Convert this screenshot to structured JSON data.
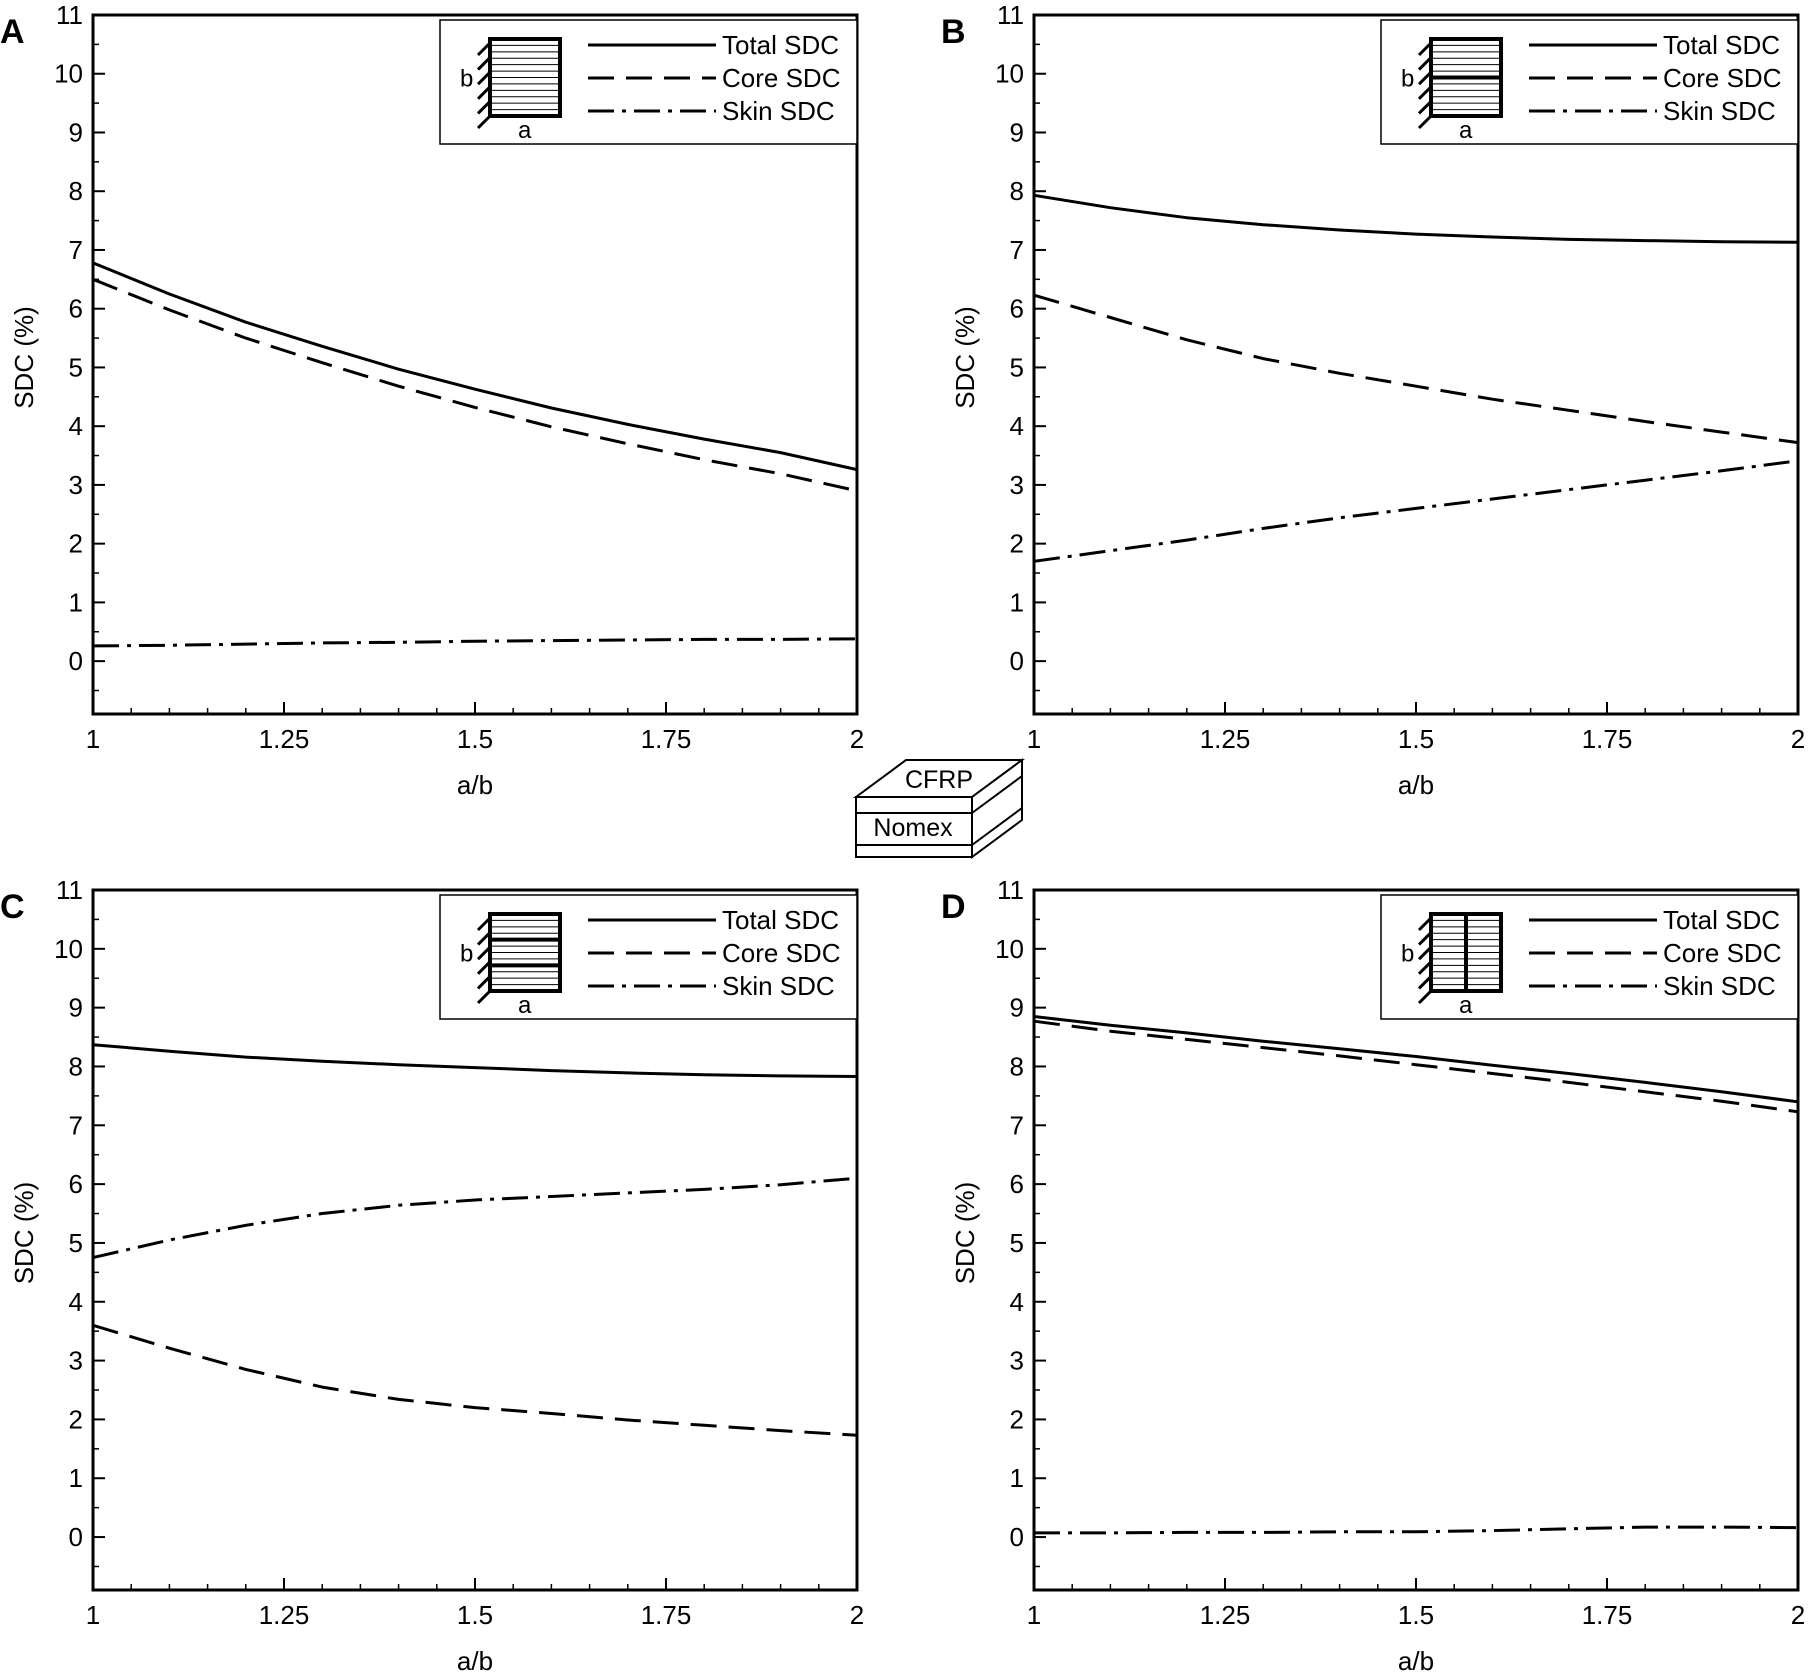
{
  "colors": {
    "ink": "#000000",
    "background": "#ffffff"
  },
  "material_inset": {
    "top_label": "CFRP",
    "core_label": "Nomex"
  },
  "chart_data": [
    {
      "panel": "A",
      "type": "line",
      "xlabel": "a/b",
      "ylabel": "SDC (%)",
      "xlim": [
        1,
        2
      ],
      "ylim": [
        -0.9,
        11
      ],
      "xticks": [
        "1",
        "1.25",
        "1.5",
        "1.75",
        "2"
      ],
      "yticks": [
        "0",
        "1",
        "2",
        "3",
        "4",
        "5",
        "6",
        "7",
        "8",
        "9",
        "10",
        "11"
      ],
      "legend": {
        "placement": "top-right",
        "dim_a": "a",
        "dim_b": "b",
        "inset": "plain"
      },
      "x": [
        1,
        1.1,
        1.2,
        1.3,
        1.4,
        1.5,
        1.6,
        1.7,
        1.8,
        1.9,
        2
      ],
      "series": [
        {
          "name": "Total SDC",
          "style": "solid",
          "values": [
            6.78,
            6.25,
            5.77,
            5.36,
            4.97,
            4.63,
            4.31,
            4.03,
            3.78,
            3.55,
            3.26
          ]
        },
        {
          "name": "Core SDC",
          "style": "dashed",
          "values": [
            6.5,
            5.98,
            5.5,
            5.08,
            4.68,
            4.32,
            3.99,
            3.7,
            3.43,
            3.19,
            2.9
          ]
        },
        {
          "name": "Skin SDC",
          "style": "dashdot",
          "values": [
            0.26,
            0.27,
            0.29,
            0.31,
            0.32,
            0.34,
            0.35,
            0.36,
            0.37,
            0.37,
            0.38
          ]
        }
      ]
    },
    {
      "panel": "B",
      "type": "line",
      "xlabel": "a/b",
      "ylabel": "SDC (%)",
      "xlim": [
        1,
        2
      ],
      "ylim": [
        -0.9,
        11
      ],
      "xticks": [
        "1",
        "1.25",
        "1.5",
        "1.75",
        "2"
      ],
      "yticks": [
        "0",
        "1",
        "2",
        "3",
        "4",
        "5",
        "6",
        "7",
        "8",
        "9",
        "10",
        "11"
      ],
      "legend": {
        "placement": "top-right",
        "dim_a": "a",
        "dim_b": "b",
        "inset": "horizontal-stiffener"
      },
      "x": [
        1,
        1.1,
        1.2,
        1.3,
        1.4,
        1.5,
        1.6,
        1.7,
        1.8,
        1.9,
        2
      ],
      "series": [
        {
          "name": "Total SDC",
          "style": "solid",
          "values": [
            7.93,
            7.72,
            7.55,
            7.43,
            7.34,
            7.27,
            7.22,
            7.18,
            7.16,
            7.14,
            7.13
          ]
        },
        {
          "name": "Core SDC",
          "style": "dashed",
          "values": [
            6.23,
            5.85,
            5.47,
            5.15,
            4.9,
            4.68,
            4.46,
            4.27,
            4.08,
            3.9,
            3.72
          ]
        },
        {
          "name": "Skin SDC",
          "style": "dashdot",
          "values": [
            1.7,
            1.88,
            2.06,
            2.26,
            2.44,
            2.6,
            2.76,
            2.92,
            3.08,
            3.24,
            3.41
          ]
        }
      ]
    },
    {
      "panel": "C",
      "type": "line",
      "xlabel": "a/b",
      "ylabel": "SDC (%)",
      "xlim": [
        1,
        2
      ],
      "ylim": [
        -0.9,
        11
      ],
      "xticks": [
        "1",
        "1.25",
        "1.5",
        "1.75",
        "2"
      ],
      "yticks": [
        "0",
        "1",
        "2",
        "3",
        "4",
        "5",
        "6",
        "7",
        "8",
        "9",
        "10",
        "11"
      ],
      "legend": {
        "placement": "top-right",
        "dim_a": "a",
        "dim_b": "b",
        "inset": "two-horizontal-stiffeners"
      },
      "x": [
        1,
        1.1,
        1.2,
        1.3,
        1.4,
        1.5,
        1.6,
        1.7,
        1.8,
        1.9,
        2
      ],
      "series": [
        {
          "name": "Total SDC",
          "style": "solid",
          "values": [
            8.37,
            8.26,
            8.16,
            8.09,
            8.03,
            7.98,
            7.93,
            7.89,
            7.86,
            7.84,
            7.83
          ]
        },
        {
          "name": "Core SDC",
          "style": "dashed",
          "values": [
            3.6,
            3.21,
            2.85,
            2.55,
            2.34,
            2.2,
            2.1,
            1.99,
            1.9,
            1.81,
            1.73
          ]
        },
        {
          "name": "Skin SDC",
          "style": "dashdot",
          "values": [
            4.75,
            5.05,
            5.3,
            5.5,
            5.64,
            5.73,
            5.79,
            5.85,
            5.91,
            5.99,
            6.1
          ]
        }
      ]
    },
    {
      "panel": "D",
      "type": "line",
      "xlabel": "a/b",
      "ylabel": "SDC (%)",
      "xlim": [
        1,
        2
      ],
      "ylim": [
        -0.9,
        11
      ],
      "xticks": [
        "1",
        "1.25",
        "1.5",
        "1.75",
        "2"
      ],
      "yticks": [
        "0",
        "1",
        "2",
        "3",
        "4",
        "5",
        "6",
        "7",
        "8",
        "9",
        "10",
        "11"
      ],
      "legend": {
        "placement": "top-right",
        "dim_a": "a",
        "dim_b": "b",
        "inset": "vertical-stiffener"
      },
      "x": [
        1,
        1.1,
        1.2,
        1.3,
        1.4,
        1.5,
        1.6,
        1.7,
        1.8,
        1.9,
        2
      ],
      "series": [
        {
          "name": "Total SDC",
          "style": "solid",
          "values": [
            8.85,
            8.7,
            8.57,
            8.43,
            8.3,
            8.17,
            8.02,
            7.88,
            7.73,
            7.57,
            7.4
          ]
        },
        {
          "name": "Core SDC",
          "style": "dashed",
          "values": [
            8.77,
            8.6,
            8.46,
            8.32,
            8.18,
            8.03,
            7.88,
            7.73,
            7.57,
            7.41,
            7.23
          ]
        },
        {
          "name": "Skin SDC",
          "style": "dashdot",
          "values": [
            0.07,
            0.07,
            0.08,
            0.08,
            0.09,
            0.09,
            0.11,
            0.14,
            0.17,
            0.17,
            0.16
          ]
        }
      ]
    }
  ]
}
